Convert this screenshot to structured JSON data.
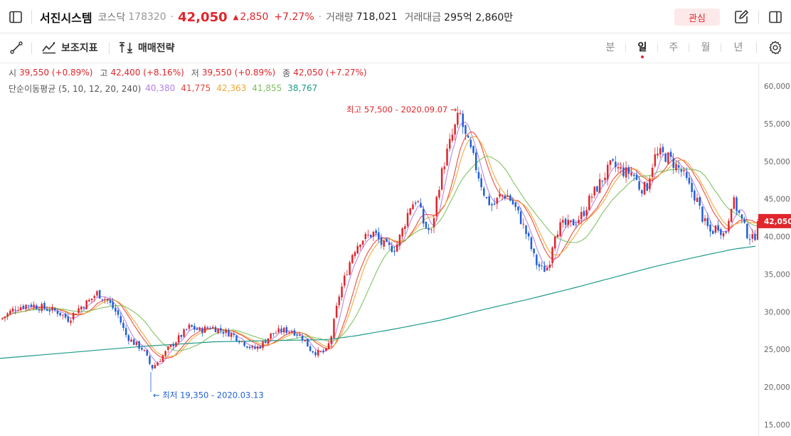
{
  "header": {
    "stock_name": "서진시스템",
    "market": "코스닥",
    "code": "178320",
    "price": "42,050",
    "change": "2,850",
    "change_pct": "+7.27%",
    "volume_label": "거래량",
    "volume": "718,021",
    "amount_label": "거래대금",
    "amount": "295억 2,860만",
    "favorite_label": "관심"
  },
  "toolbar": {
    "indicator_label": "보조지표",
    "strategy_label": "매매전략",
    "periods": [
      "분",
      "일",
      "주",
      "월",
      "년"
    ],
    "active_period": "일"
  },
  "ohlc": {
    "open_label": "시",
    "open": "39,550 (+0.89%)",
    "high_label": "고",
    "high": "42,400 (+8.16%)",
    "low_label": "저",
    "low": "39,550 (+0.89%)",
    "close_label": "종",
    "close": "42,050 (+7.27%)"
  },
  "ma": {
    "label": "단순이동평균 (5, 10, 12, 20, 240)",
    "values": [
      "40,380",
      "41,775",
      "42,363",
      "41,855",
      "38,767"
    ],
    "colors": [
      "#b57ee8",
      "#e8433a",
      "#f2a531",
      "#7cbf5e",
      "#1f9a8a"
    ]
  },
  "colors": {
    "up": "#e0262c",
    "down": "#1f5fd6",
    "price_tag_bg": "#e0262c"
  },
  "chart_data": {
    "type": "candlestick",
    "y_ticks": [
      "60,000",
      "55,000",
      "50,000",
      "45,000",
      "40,000",
      "35,000",
      "30,000",
      "25,000",
      "20,000",
      "15,000"
    ],
    "ylim": [
      15000,
      60000
    ],
    "current_price_tag": "42,050",
    "max_annotation": "최고 57,500 - 2020.09.07",
    "min_annotation": "최저 19,350 - 2020.03.13",
    "max_value": 57500,
    "min_value": 19350,
    "close_path_keypoints": [
      [
        0,
        29000
      ],
      [
        20,
        30500
      ],
      [
        40,
        31000
      ],
      [
        60,
        30500
      ],
      [
        80,
        30000
      ],
      [
        95,
        29000
      ],
      [
        110,
        30500
      ],
      [
        125,
        31500
      ],
      [
        135,
        32500
      ],
      [
        150,
        31500
      ],
      [
        165,
        29500
      ],
      [
        175,
        27000
      ],
      [
        185,
        26000
      ],
      [
        200,
        25000
      ],
      [
        212,
        22500
      ],
      [
        222,
        23500
      ],
      [
        235,
        25000
      ],
      [
        250,
        26500
      ],
      [
        265,
        28000
      ],
      [
        280,
        27500
      ],
      [
        295,
        28000
      ],
      [
        310,
        27500
      ],
      [
        325,
        27000
      ],
      [
        340,
        26000
      ],
      [
        355,
        25000
      ],
      [
        365,
        25500
      ],
      [
        380,
        27000
      ],
      [
        395,
        27500
      ],
      [
        410,
        27500
      ],
      [
        425,
        26500
      ],
      [
        435,
        25000
      ],
      [
        445,
        24500
      ],
      [
        458,
        24800
      ],
      [
        465,
        27000
      ],
      [
        475,
        32000
      ],
      [
        485,
        35000
      ],
      [
        495,
        38000
      ],
      [
        505,
        39500
      ],
      [
        515,
        40000
      ],
      [
        525,
        40500
      ],
      [
        535,
        39000
      ],
      [
        545,
        38500
      ],
      [
        555,
        38500
      ],
      [
        565,
        41000
      ],
      [
        575,
        44000
      ],
      [
        585,
        45000
      ],
      [
        595,
        41500
      ],
      [
        605,
        40500
      ],
      [
        615,
        46500
      ],
      [
        625,
        50500
      ],
      [
        635,
        53500
      ],
      [
        645,
        56500
      ],
      [
        652,
        53500
      ],
      [
        662,
        51000
      ],
      [
        672,
        48000
      ],
      [
        682,
        45000
      ],
      [
        692,
        44000
      ],
      [
        702,
        45500
      ],
      [
        712,
        45500
      ],
      [
        722,
        44000
      ],
      [
        732,
        42000
      ],
      [
        742,
        39500
      ],
      [
        752,
        36500
      ],
      [
        762,
        35500
      ],
      [
        770,
        36000
      ],
      [
        778,
        40500
      ],
      [
        788,
        41500
      ],
      [
        798,
        41500
      ],
      [
        808,
        42000
      ],
      [
        818,
        43000
      ],
      [
        828,
        45000
      ],
      [
        838,
        46500
      ],
      [
        848,
        48000
      ],
      [
        858,
        49500
      ],
      [
        868,
        49000
      ],
      [
        878,
        48500
      ],
      [
        888,
        48500
      ],
      [
        898,
        46500
      ],
      [
        908,
        46500
      ],
      [
        918,
        50500
      ],
      [
        928,
        51000
      ],
      [
        938,
        50500
      ],
      [
        948,
        49500
      ],
      [
        958,
        48500
      ],
      [
        968,
        46500
      ],
      [
        978,
        45000
      ],
      [
        988,
        42000
      ],
      [
        998,
        40500
      ],
      [
        1008,
        41500
      ],
      [
        1018,
        40000
      ],
      [
        1028,
        45000
      ],
      [
        1038,
        43000
      ],
      [
        1048,
        40500
      ],
      [
        1058,
        39500
      ],
      [
        1066,
        42050
      ]
    ],
    "ma240_path": [
      [
        0,
        23800
      ],
      [
        100,
        24600
      ],
      [
        200,
        25400
      ],
      [
        300,
        26000
      ],
      [
        400,
        26200
      ],
      [
        460,
        26300
      ],
      [
        500,
        26800
      ],
      [
        560,
        27800
      ],
      [
        620,
        28900
      ],
      [
        680,
        30300
      ],
      [
        740,
        31600
      ],
      [
        800,
        33000
      ],
      [
        860,
        34500
      ],
      [
        920,
        36000
      ],
      [
        980,
        37300
      ],
      [
        1030,
        38300
      ],
      [
        1066,
        38767
      ]
    ]
  }
}
